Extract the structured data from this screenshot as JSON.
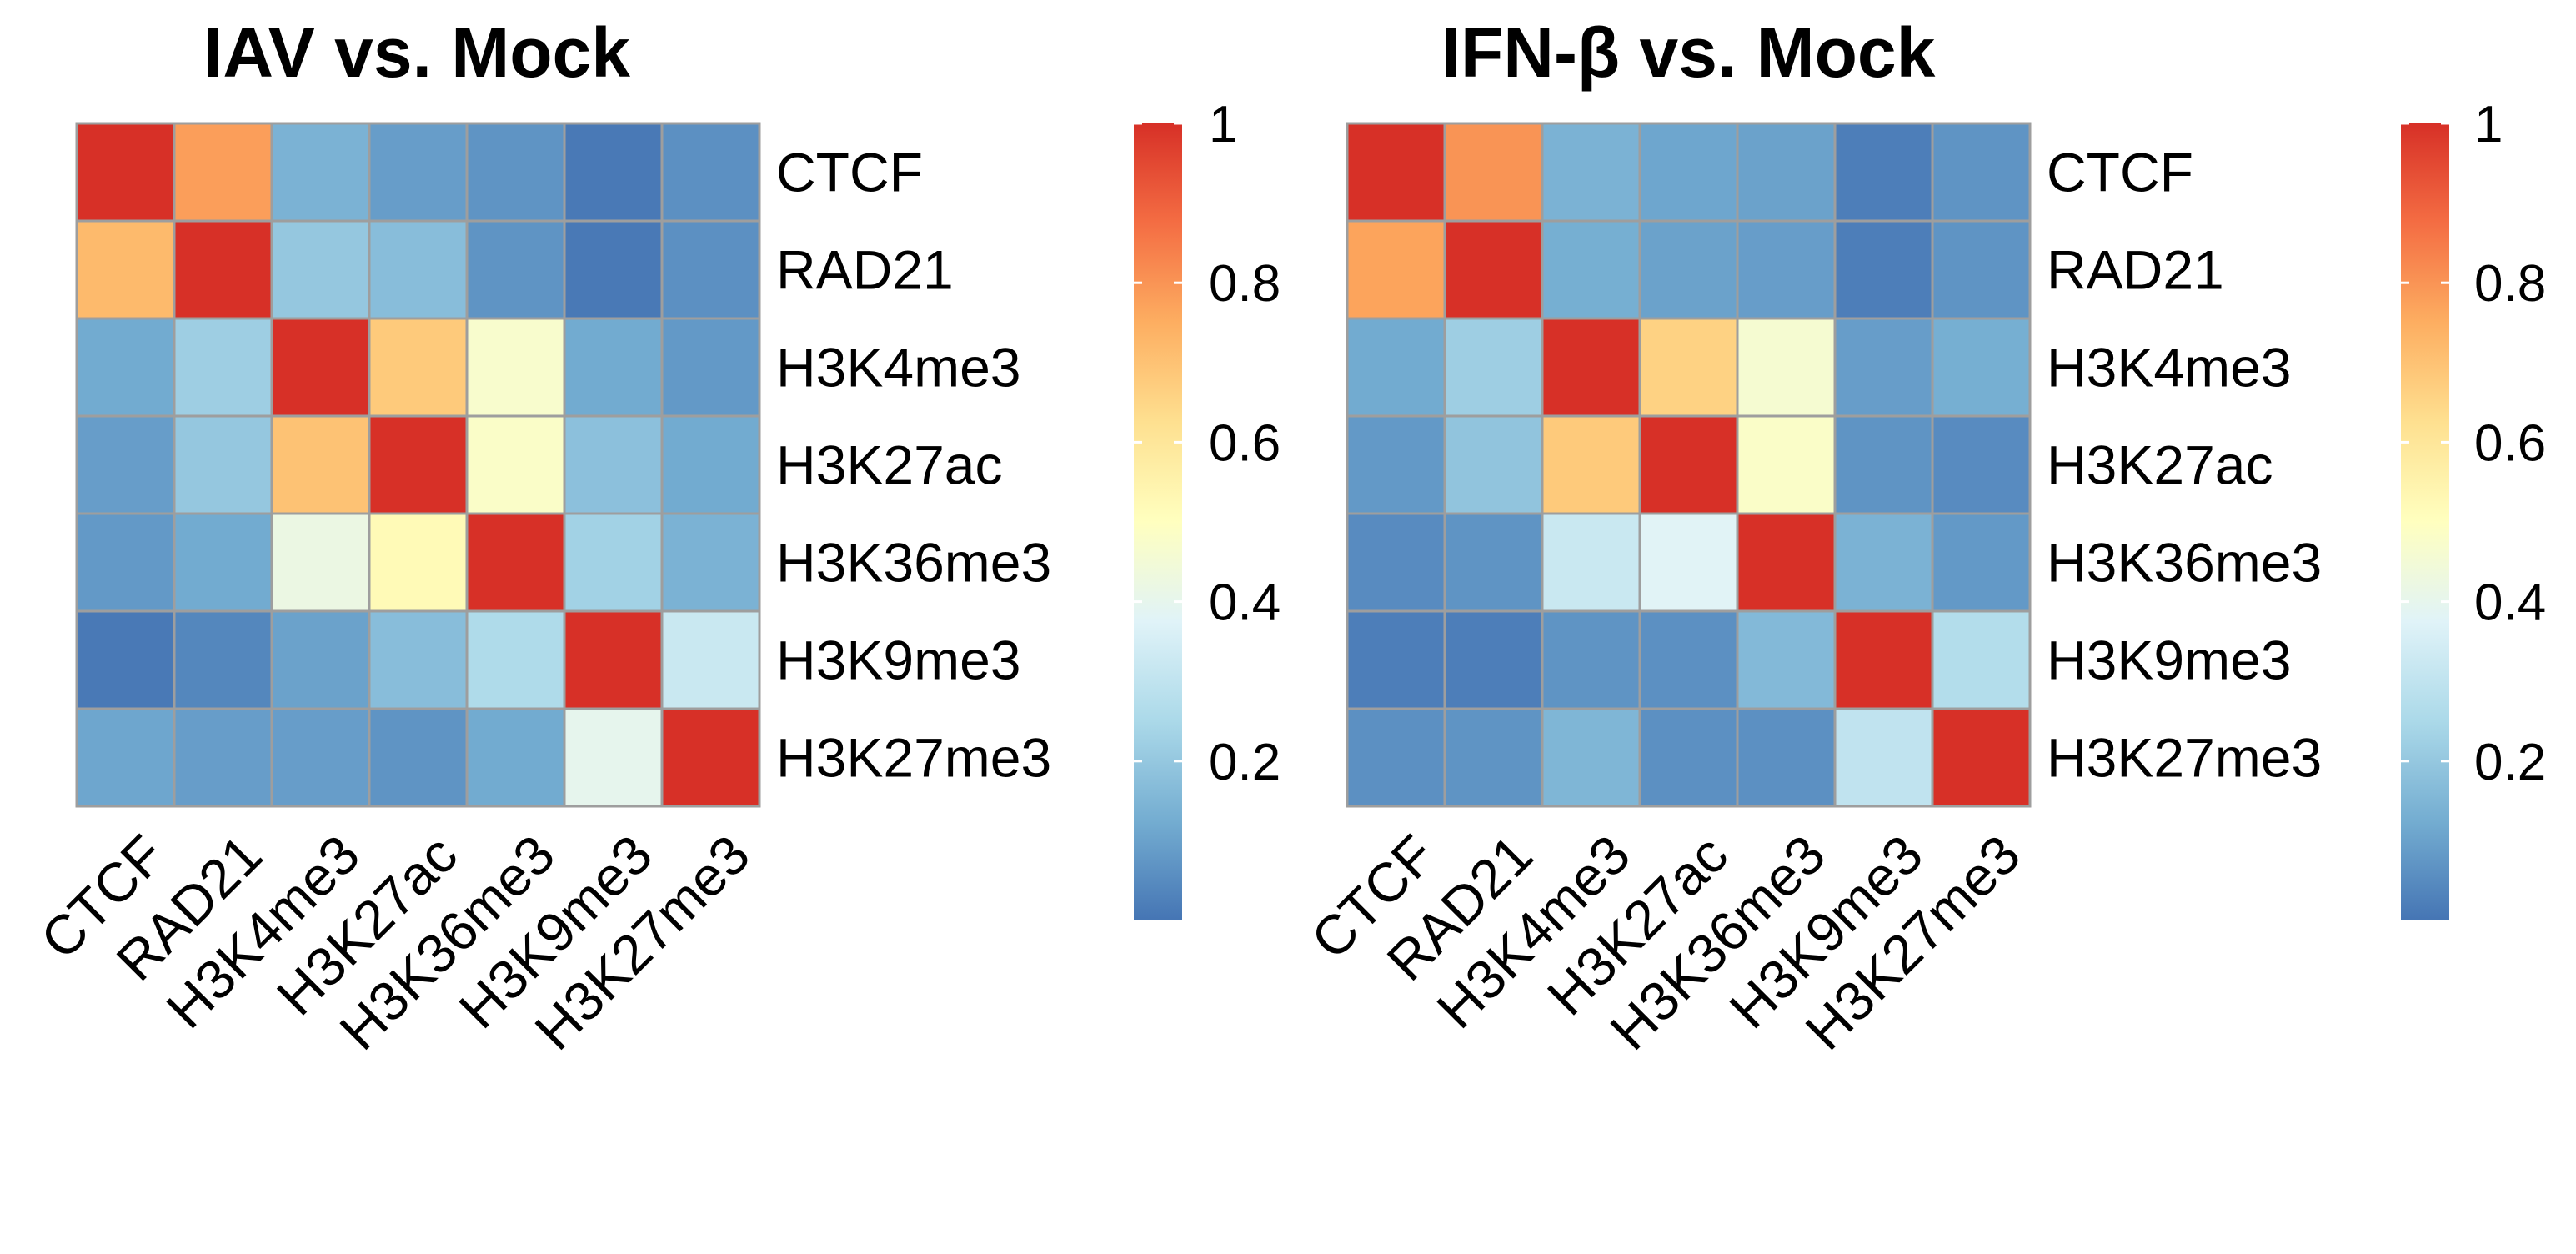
{
  "chart_data": [
    {
      "type": "heatmap",
      "title": "IAV vs. Mock",
      "rows": [
        "CTCF",
        "RAD21",
        "H3K4me3",
        "H3K27ac",
        "H3K36me3",
        "H3K9me3",
        "H3K27me3"
      ],
      "columns": [
        "CTCF",
        "RAD21",
        "H3K4me3",
        "H3K27ac",
        "H3K36me3",
        "H3K9me3",
        "H3K27me3"
      ],
      "values": [
        [
          1.0,
          0.78,
          0.14,
          0.09,
          0.07,
          0.01,
          0.06
        ],
        [
          0.72,
          1.0,
          0.2,
          0.17,
          0.07,
          0.01,
          0.06
        ],
        [
          0.12,
          0.22,
          1.0,
          0.68,
          0.47,
          0.12,
          0.08
        ],
        [
          0.09,
          0.2,
          0.7,
          1.0,
          0.48,
          0.18,
          0.12
        ],
        [
          0.08,
          0.12,
          0.42,
          0.52,
          1.0,
          0.23,
          0.14
        ],
        [
          0.01,
          0.04,
          0.1,
          0.17,
          0.26,
          1.0,
          0.32
        ],
        [
          0.11,
          0.09,
          0.09,
          0.07,
          0.12,
          0.4,
          1.0
        ]
      ],
      "colorbar": {
        "ticks": [
          "0.2",
          "0.4",
          "0.6",
          "0.8",
          "1"
        ],
        "tick_values": [
          0.2,
          0.4,
          0.6,
          0.8,
          1.0
        ],
        "range": [
          0.0,
          1.0
        ]
      }
    },
    {
      "type": "heatmap",
      "title": "IFN-β vs. Mock",
      "rows": [
        "CTCF",
        "RAD21",
        "H3K4me3",
        "H3K27ac",
        "H3K36me3",
        "H3K9me3",
        "H3K27me3"
      ],
      "columns": [
        "CTCF",
        "RAD21",
        "H3K4me3",
        "H3K27ac",
        "H3K36me3",
        "H3K9me3",
        "H3K27me3"
      ],
      "values": [
        [
          1.0,
          0.8,
          0.14,
          0.11,
          0.1,
          0.02,
          0.07
        ],
        [
          0.77,
          1.0,
          0.13,
          0.1,
          0.09,
          0.02,
          0.07
        ],
        [
          0.12,
          0.22,
          1.0,
          0.66,
          0.46,
          0.09,
          0.13
        ],
        [
          0.08,
          0.19,
          0.68,
          1.0,
          0.48,
          0.07,
          0.05
        ],
        [
          0.05,
          0.07,
          0.32,
          0.38,
          1.0,
          0.14,
          0.08
        ],
        [
          0.02,
          0.02,
          0.07,
          0.06,
          0.16,
          1.0,
          0.27
        ],
        [
          0.06,
          0.07,
          0.15,
          0.06,
          0.06,
          0.3,
          1.0
        ]
      ],
      "colorbar": {
        "ticks": [
          "0.2",
          "0.4",
          "0.6",
          "0.8",
          "1"
        ],
        "tick_values": [
          0.2,
          0.4,
          0.6,
          0.8,
          1.0
        ],
        "range": [
          0.0,
          1.0
        ]
      }
    }
  ],
  "colors": {
    "scale": [
      "#4575b4",
      "#74add1",
      "#abd9e9",
      "#e0f3f8",
      "#ffffbf",
      "#fee090",
      "#fdae61",
      "#f46d43",
      "#d73027"
    ],
    "grid": "#9e9e9e",
    "text": "#000000"
  }
}
